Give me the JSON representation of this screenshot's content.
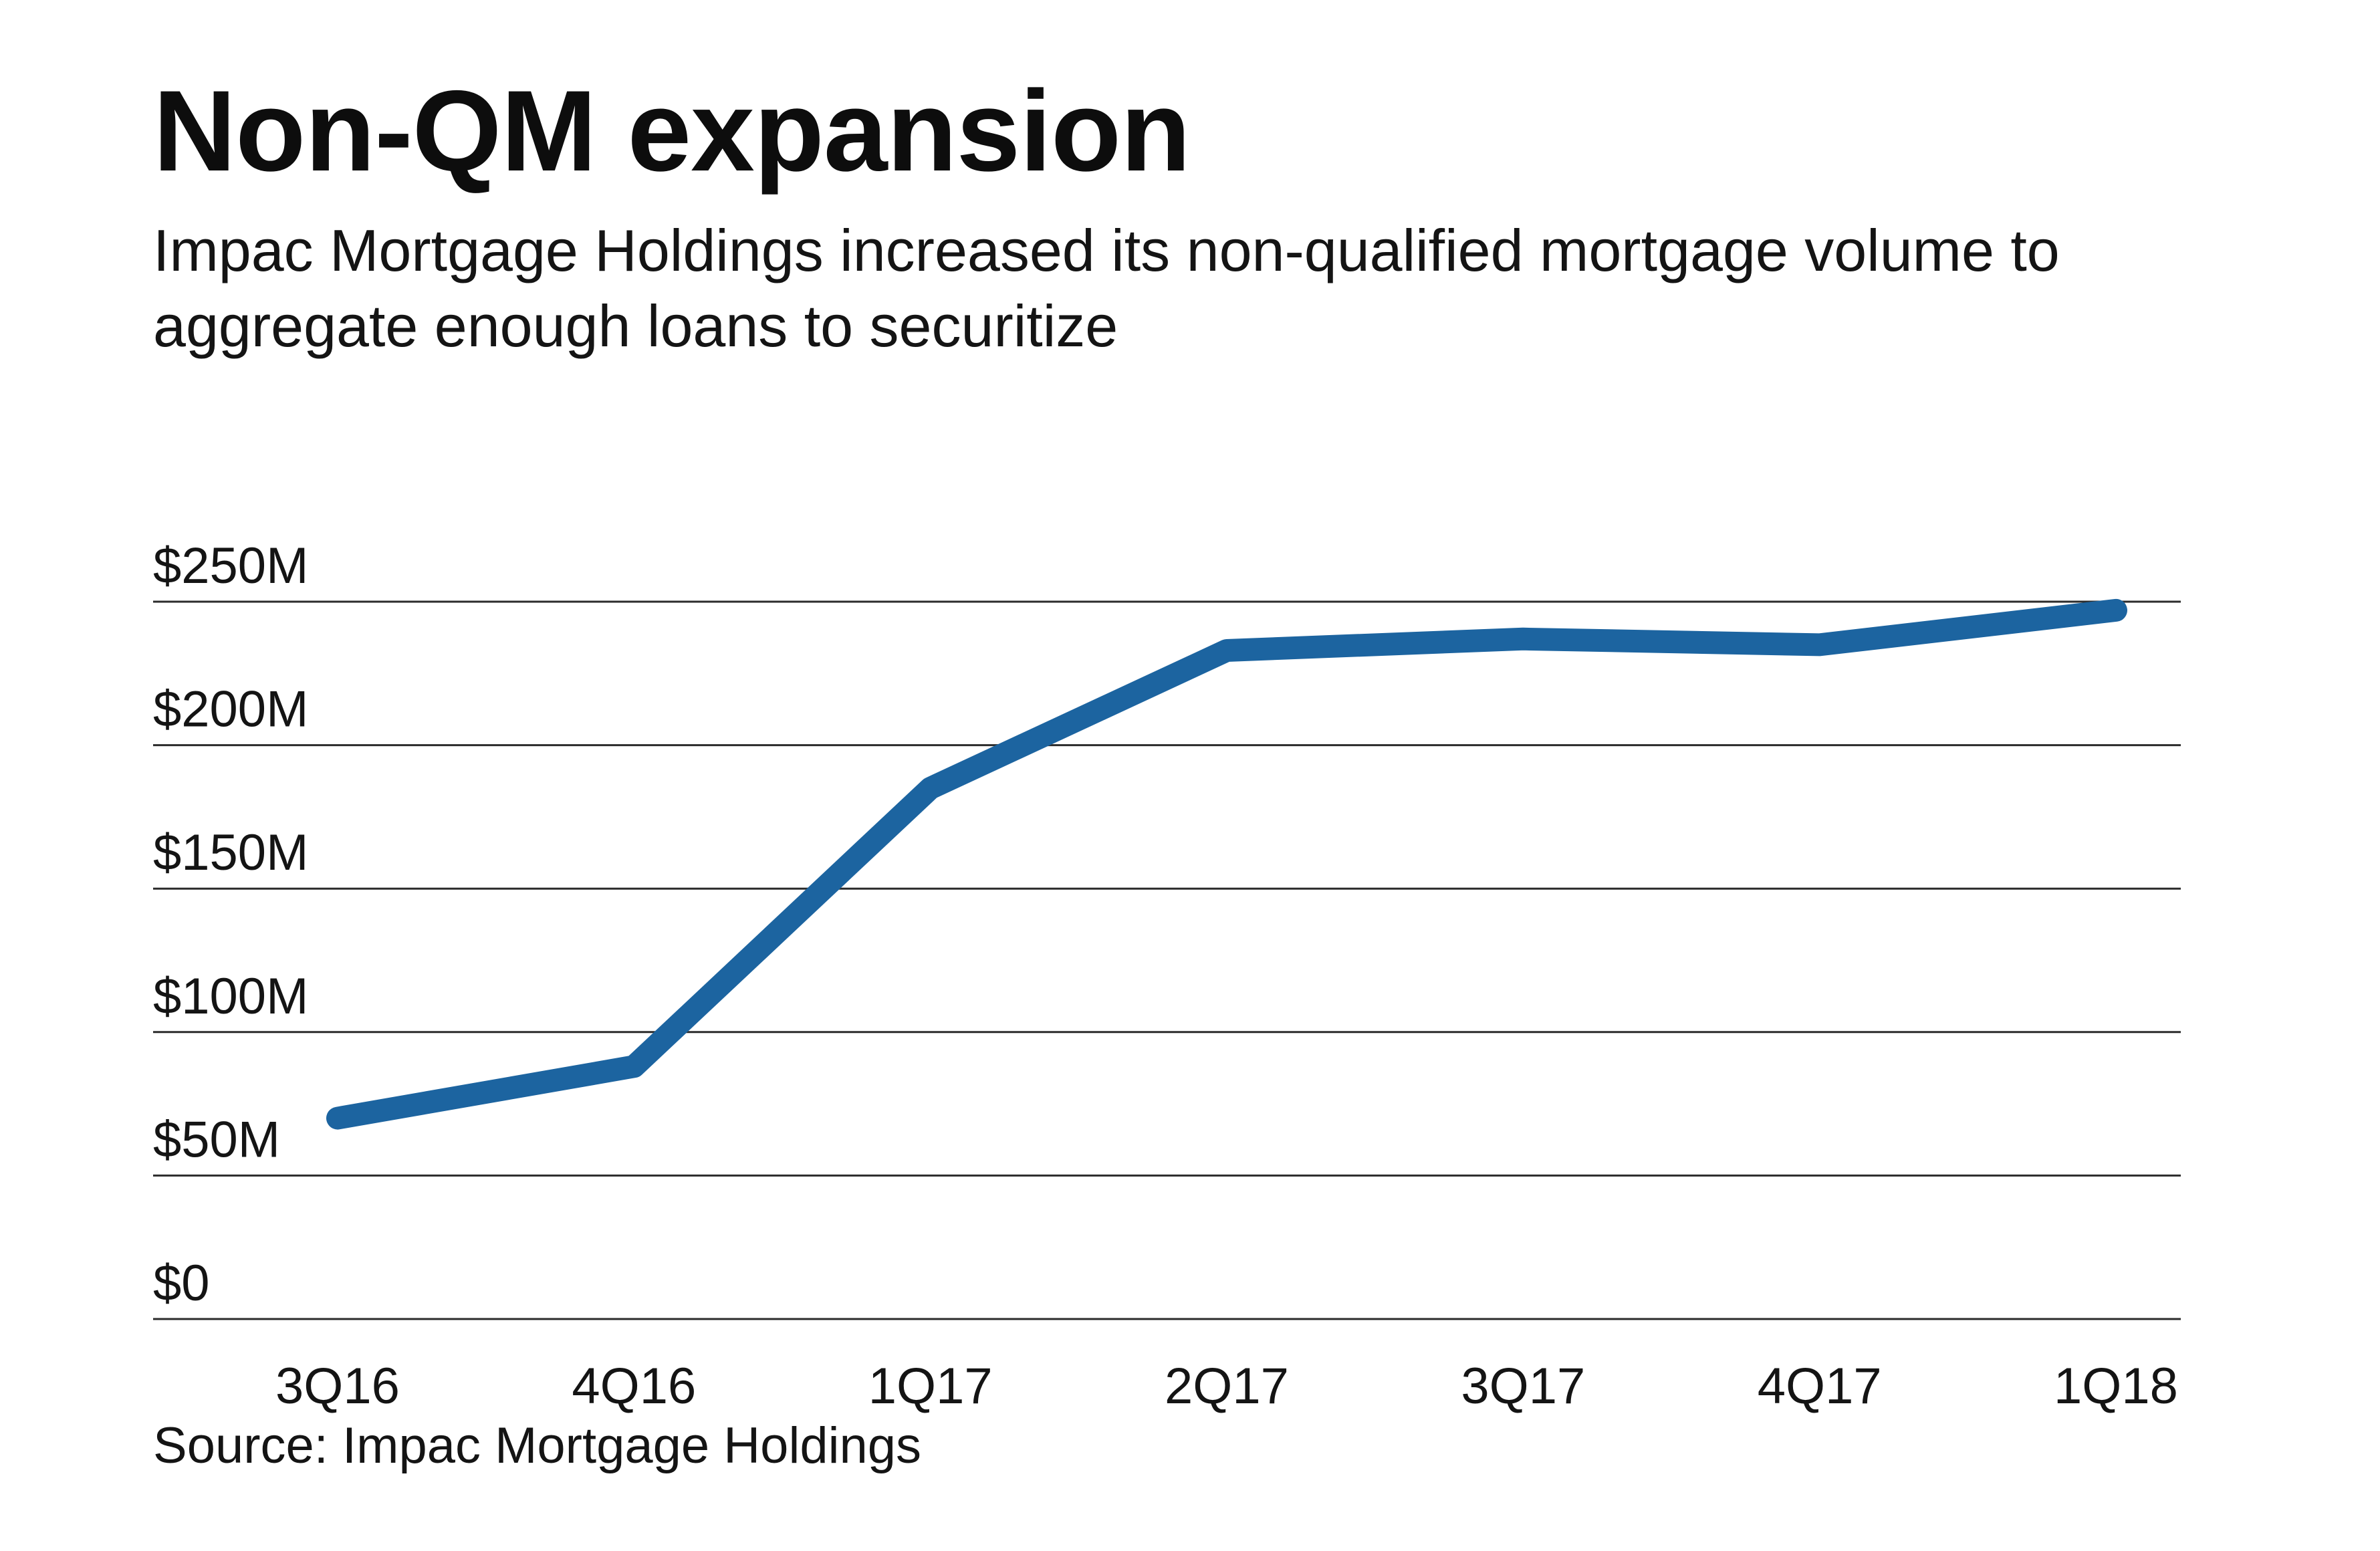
{
  "title": "Non-QM expansion",
  "subtitle": "Impac Mortgage Holdings increased its non-qualified mortgage volume to aggregate enough loans to securitize",
  "source": "Source: Impac Mortgage Holdings",
  "colors": {
    "line": "#1c64a0",
    "grid": "#2b2b2b",
    "text": "#141414"
  },
  "chart_data": {
    "type": "line",
    "categories": [
      "3Q16",
      "4Q16",
      "1Q17",
      "2Q17",
      "3Q17",
      "4Q17",
      "1Q18"
    ],
    "y_tick_labels": [
      "$0",
      "$50M",
      "$100M",
      "$150M",
      "$200M",
      "$250M"
    ],
    "y_ticks": [
      0,
      50,
      100,
      150,
      200,
      250
    ],
    "ylim": [
      0,
      250
    ],
    "unit": "$M",
    "series": [
      {
        "values": [
          70,
          88,
          185,
          233,
          237,
          235,
          247
        ]
      }
    ],
    "grid": true,
    "legend": "none"
  }
}
